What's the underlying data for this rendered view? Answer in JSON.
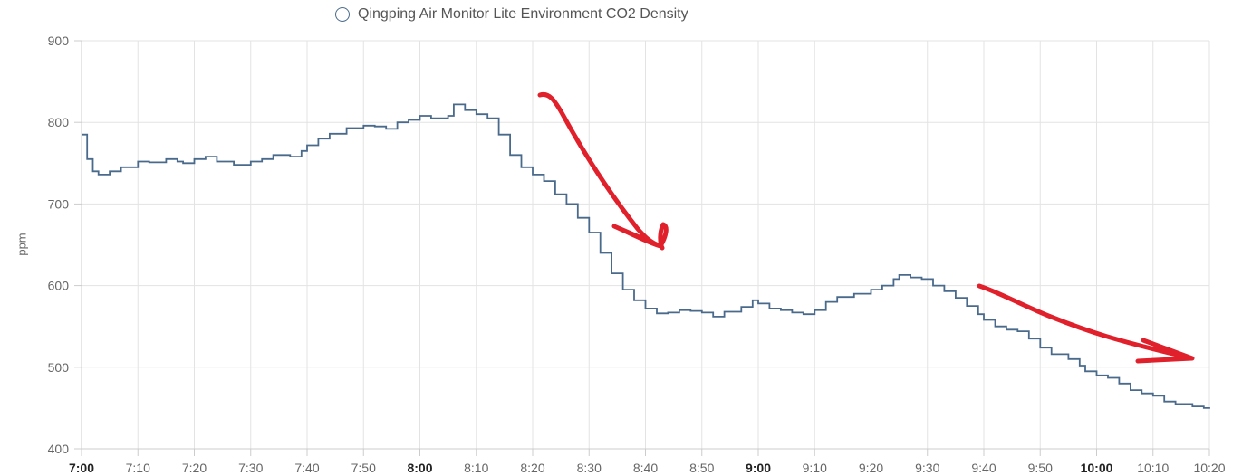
{
  "chart_data": {
    "type": "line",
    "step": true,
    "ylabel": "ppm",
    "ylim": [
      400,
      900
    ],
    "yticks": [
      "400",
      "500",
      "600",
      "700",
      "800",
      "900"
    ],
    "xlim_minutes": [
      420,
      620
    ],
    "xticks": [
      {
        "label": "7:00",
        "bold": true
      },
      {
        "label": "7:10",
        "bold": false
      },
      {
        "label": "7:20",
        "bold": false
      },
      {
        "label": "7:30",
        "bold": false
      },
      {
        "label": "7:40",
        "bold": false
      },
      {
        "label": "7:50",
        "bold": false
      },
      {
        "label": "8:00",
        "bold": true
      },
      {
        "label": "8:10",
        "bold": false
      },
      {
        "label": "8:20",
        "bold": false
      },
      {
        "label": "8:30",
        "bold": false
      },
      {
        "label": "8:40",
        "bold": false
      },
      {
        "label": "8:50",
        "bold": false
      },
      {
        "label": "9:00",
        "bold": true
      },
      {
        "label": "9:10",
        "bold": false
      },
      {
        "label": "9:20",
        "bold": false
      },
      {
        "label": "9:30",
        "bold": false
      },
      {
        "label": "9:40",
        "bold": false
      },
      {
        "label": "9:50",
        "bold": false
      },
      {
        "label": "10:00",
        "bold": true
      },
      {
        "label": "10:10",
        "bold": false
      },
      {
        "label": "10:20",
        "bold": false
      }
    ],
    "grid": true,
    "legend": "top-center",
    "series": [
      {
        "name": "Qingping Air Monitor Lite Environment CO2 Density",
        "color": "#4a6a8c",
        "points": [
          [
            "7:00",
            785
          ],
          [
            "7:01",
            755
          ],
          [
            "7:02",
            740
          ],
          [
            "7:03",
            736
          ],
          [
            "7:05",
            740
          ],
          [
            "7:07",
            745
          ],
          [
            "7:10",
            752
          ],
          [
            "7:12",
            751
          ],
          [
            "7:15",
            755
          ],
          [
            "7:17",
            752
          ],
          [
            "7:18",
            750
          ],
          [
            "7:20",
            755
          ],
          [
            "7:22",
            758
          ],
          [
            "7:24",
            752
          ],
          [
            "7:27",
            748
          ],
          [
            "7:30",
            752
          ],
          [
            "7:32",
            755
          ],
          [
            "7:34",
            760
          ],
          [
            "7:37",
            758
          ],
          [
            "7:39",
            765
          ],
          [
            "7:40",
            772
          ],
          [
            "7:42",
            780
          ],
          [
            "7:44",
            786
          ],
          [
            "7:47",
            793
          ],
          [
            "7:50",
            796
          ],
          [
            "7:52",
            795
          ],
          [
            "7:54",
            792
          ],
          [
            "7:56",
            800
          ],
          [
            "7:58",
            803
          ],
          [
            "8:00",
            808
          ],
          [
            "8:02",
            805
          ],
          [
            "8:05",
            808
          ],
          [
            "8:06",
            822
          ],
          [
            "8:08",
            815
          ],
          [
            "8:10",
            810
          ],
          [
            "8:12",
            805
          ],
          [
            "8:14",
            785
          ],
          [
            "8:16",
            760
          ],
          [
            "8:18",
            745
          ],
          [
            "8:20",
            736
          ],
          [
            "8:22",
            728
          ],
          [
            "8:24",
            712
          ],
          [
            "8:26",
            700
          ],
          [
            "8:28",
            683
          ],
          [
            "8:30",
            665
          ],
          [
            "8:32",
            640
          ],
          [
            "8:34",
            615
          ],
          [
            "8:36",
            595
          ],
          [
            "8:38",
            582
          ],
          [
            "8:40",
            572
          ],
          [
            "8:42",
            566
          ],
          [
            "8:44",
            567
          ],
          [
            "8:46",
            570
          ],
          [
            "8:48",
            569
          ],
          [
            "8:50",
            567
          ],
          [
            "8:52",
            562
          ],
          [
            "8:54",
            568
          ],
          [
            "8:57",
            574
          ],
          [
            "8:59",
            582
          ],
          [
            "9:00",
            578
          ],
          [
            "9:02",
            572
          ],
          [
            "9:04",
            570
          ],
          [
            "9:06",
            567
          ],
          [
            "9:08",
            565
          ],
          [
            "9:10",
            570
          ],
          [
            "9:12",
            580
          ],
          [
            "9:14",
            586
          ],
          [
            "9:17",
            590
          ],
          [
            "9:20",
            595
          ],
          [
            "9:22",
            600
          ],
          [
            "9:24",
            608
          ],
          [
            "9:25",
            613
          ],
          [
            "9:27",
            610
          ],
          [
            "9:29",
            608
          ],
          [
            "9:31",
            600
          ],
          [
            "9:33",
            593
          ],
          [
            "9:35",
            585
          ],
          [
            "9:37",
            575
          ],
          [
            "9:39",
            565
          ],
          [
            "9:40",
            558
          ],
          [
            "9:42",
            550
          ],
          [
            "9:44",
            546
          ],
          [
            "9:46",
            544
          ],
          [
            "9:48",
            535
          ],
          [
            "9:50",
            524
          ],
          [
            "9:52",
            516
          ],
          [
            "9:55",
            510
          ],
          [
            "9:57",
            502
          ],
          [
            "9:58",
            495
          ],
          [
            "10:00",
            490
          ],
          [
            "10:02",
            487
          ],
          [
            "10:04",
            480
          ],
          [
            "10:06",
            472
          ],
          [
            "10:08",
            468
          ],
          [
            "10:10",
            465
          ],
          [
            "10:12",
            458
          ],
          [
            "10:14",
            455
          ],
          [
            "10:17",
            452
          ],
          [
            "10:19",
            450
          ],
          [
            "10:20",
            449
          ]
        ]
      }
    ]
  },
  "annotations": {
    "arrow_color": "#e0202a"
  }
}
